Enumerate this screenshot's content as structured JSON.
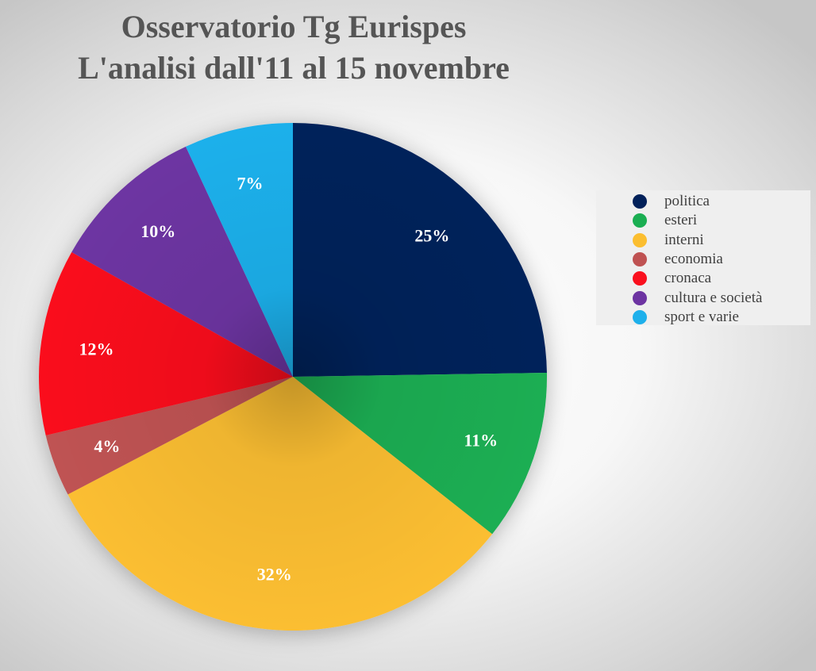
{
  "chart_data": {
    "type": "pie",
    "title": [
      "Osservatorio Tg Eurispes",
      "L'analisi dall'11 al 15 novembre"
    ],
    "categories": [
      "politica",
      "esteri",
      "interni",
      "economia",
      "cronaca",
      "cultura e società",
      "sport e varie"
    ],
    "values": [
      25,
      11,
      32,
      4,
      12,
      10,
      7
    ],
    "labels": [
      "25%",
      "11%",
      "32%",
      "4%",
      "12%",
      "10%",
      "7%"
    ],
    "colors": [
      "#02215a",
      "#1aae52",
      "#fbbe30",
      "#bf5252",
      "#fa101e",
      "#6d34a2",
      "#1eb0eb"
    ],
    "legend_position": "right"
  }
}
